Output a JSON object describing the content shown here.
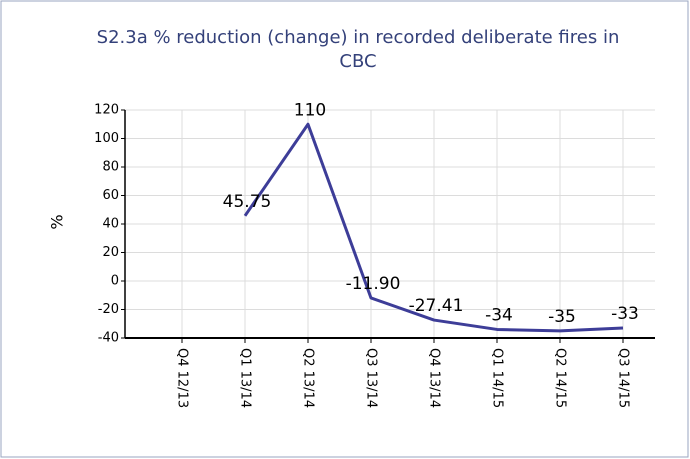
{
  "chart_data": {
    "type": "line",
    "title": "S2.3a % reduction (change) in recorded deliberate fires in CBC",
    "y_label": "%",
    "categories": [
      "Q4 12/13",
      "Q1 13/14",
      "Q2 13/14",
      "Q3 13/14",
      "Q4 13/14",
      "Q1 14/15",
      "Q2 14/15",
      "Q3 14/15"
    ],
    "series": [
      {
        "name": "CBC",
        "color": "#3d3d98",
        "values": [
          null,
          45.75,
          110,
          -11.9,
          -27.41,
          -34,
          -35,
          -33
        ],
        "value_labels": [
          null,
          "45.75",
          "110",
          "-11.90",
          "-27.41",
          "-34",
          "-35",
          "-33"
        ]
      }
    ],
    "ylim": [
      -40,
      120
    ],
    "yticks": [
      -40,
      -20,
      0,
      20,
      40,
      60,
      80,
      100,
      120
    ],
    "grid": true
  }
}
